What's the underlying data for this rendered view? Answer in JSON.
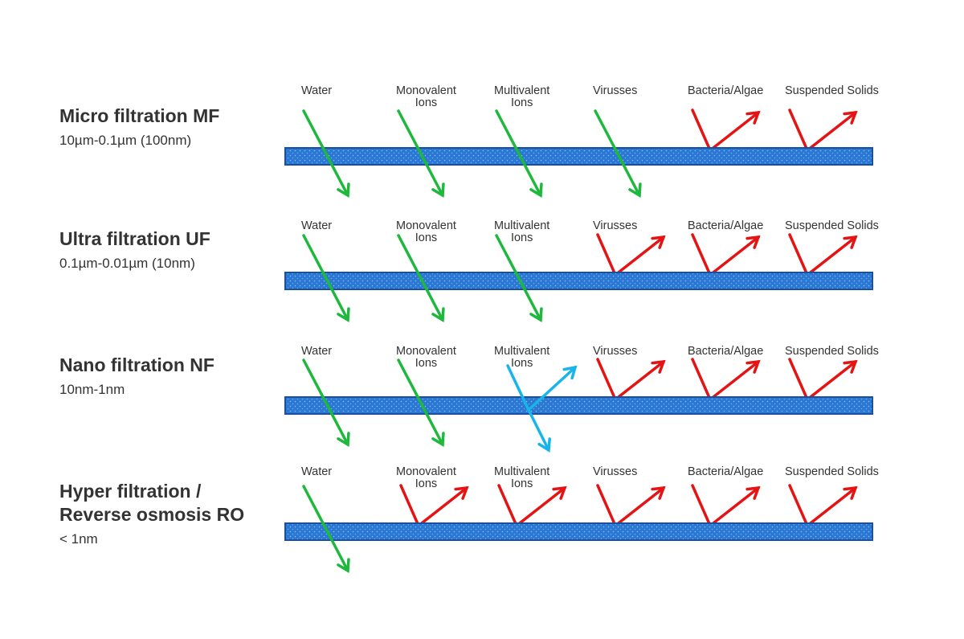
{
  "rows": [
    {
      "title": [
        "Micro filtration MF"
      ],
      "range": "10µm-0.1µm (100nm)",
      "particles": [
        [
          "Water"
        ],
        [
          "Monovalent",
          "Ions"
        ],
        [
          "Multivalent",
          "Ions"
        ],
        [
          "Virusses"
        ],
        [
          "Bacteria/Algae"
        ],
        [
          "Suspended Solids"
        ]
      ]
    },
    {
      "title": [
        "Ultra filtration UF"
      ],
      "range": "0.1µm-0.01µm (10nm)",
      "particles": [
        [
          "Water"
        ],
        [
          "Monovalent",
          "Ions"
        ],
        [
          "Multivalent",
          "Ions"
        ],
        [
          "Virusses"
        ],
        [
          "Bacteria/Algae"
        ],
        [
          "Suspended Solids"
        ]
      ]
    },
    {
      "title": [
        "Nano filtration NF"
      ],
      "range": "10nm-1nm",
      "particles": [
        [
          "Water"
        ],
        [
          "Monovalent",
          "Ions"
        ],
        [
          "Multivalent",
          "Ions"
        ],
        [
          "Virusses"
        ],
        [
          "Bacteria/Algae"
        ],
        [
          "Suspended Solids"
        ]
      ]
    },
    {
      "title": [
        "Hyper filtration /",
        "Reverse osmosis RO"
      ],
      "range": "< 1nm",
      "particles": [
        [
          "Water"
        ],
        [
          "Monovalent",
          "Ions"
        ],
        [
          "Multivalent",
          "Ions"
        ],
        [
          "Virusses"
        ],
        [
          "Bacteria/Algae"
        ],
        [
          "Suspended Solids"
        ]
      ]
    }
  ]
}
